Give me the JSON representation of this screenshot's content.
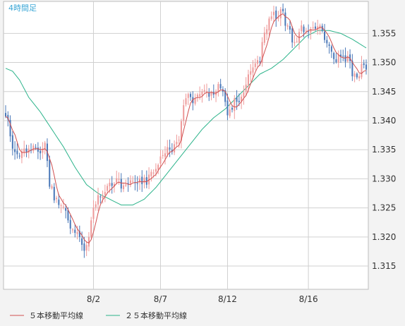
{
  "chart_data": {
    "type": "candlestick",
    "title": "4時間足",
    "ylim": [
      1.311,
      1.3605
    ],
    "y_ticks": [
      "1.315",
      "1.320",
      "1.325",
      "1.330",
      "1.335",
      "1.340",
      "1.345",
      "1.350",
      "1.355"
    ],
    "x_ticks": [
      {
        "label": "8/2",
        "index": 38
      },
      {
        "label": "8/7",
        "index": 67
      },
      {
        "label": "8/12",
        "index": 96
      },
      {
        "label": "8/16",
        "index": 131
      }
    ],
    "grid": true,
    "legend_position": "bottom-left",
    "colors": {
      "up": "#ee9a9a",
      "down": "#4a78b8",
      "ma5": "#d05050",
      "ma25": "#2bb38a",
      "grid": "#d0d0d0",
      "plot_bg": "#ffffff",
      "frame_bg": "#f3f3f3",
      "title": "#3aa6d6"
    },
    "legend": [
      {
        "label": "５本移動平均線",
        "color": "#d05050"
      },
      {
        "label": "２５本移動平均線",
        "color": "#2bb38a"
      }
    ],
    "keypoints": [
      [
        0,
        1.341
      ],
      [
        3,
        1.336
      ],
      [
        6,
        1.3345
      ],
      [
        9,
        1.335
      ],
      [
        12,
        1.336
      ],
      [
        15,
        1.335
      ],
      [
        17,
        1.336
      ],
      [
        19,
        1.329
      ],
      [
        21,
        1.327
      ],
      [
        23,
        1.325
      ],
      [
        25,
        1.3245
      ],
      [
        27,
        1.323
      ],
      [
        29,
        1.3215
      ],
      [
        31,
        1.321
      ],
      [
        34,
        1.3175
      ],
      [
        36,
        1.3195
      ],
      [
        38,
        1.325
      ],
      [
        40,
        1.327
      ],
      [
        42,
        1.328
      ],
      [
        45,
        1.3285
      ],
      [
        48,
        1.3295
      ],
      [
        51,
        1.329
      ],
      [
        54,
        1.329
      ],
      [
        57,
        1.3295
      ],
      [
        60,
        1.3295
      ],
      [
        63,
        1.3305
      ],
      [
        66,
        1.332
      ],
      [
        69,
        1.335
      ],
      [
        72,
        1.3355
      ],
      [
        75,
        1.337
      ],
      [
        77,
        1.342
      ],
      [
        79,
        1.3445
      ],
      [
        81,
        1.343
      ],
      [
        84,
        1.3445
      ],
      [
        87,
        1.345
      ],
      [
        90,
        1.3445
      ],
      [
        92,
        1.346
      ],
      [
        94,
        1.345
      ],
      [
        96,
        1.3415
      ],
      [
        98,
        1.342
      ],
      [
        100,
        1.344
      ],
      [
        102,
        1.3435
      ],
      [
        104,
        1.346
      ],
      [
        106,
        1.349
      ],
      [
        108,
        1.3505
      ],
      [
        110,
        1.3505
      ],
      [
        112,
        1.3555
      ],
      [
        114,
        1.3575
      ],
      [
        116,
        1.358
      ],
      [
        118,
        1.3585
      ],
      [
        120,
        1.358
      ],
      [
        122,
        1.356
      ],
      [
        124,
        1.354
      ],
      [
        126,
        1.3545
      ],
      [
        128,
        1.356
      ],
      [
        130,
        1.3555
      ],
      [
        132,
        1.356
      ],
      [
        134,
        1.3555
      ],
      [
        136,
        1.3555
      ],
      [
        138,
        1.354
      ],
      [
        140,
        1.3525
      ],
      [
        142,
        1.35
      ],
      [
        144,
        1.3505
      ],
      [
        146,
        1.3505
      ],
      [
        148,
        1.351
      ],
      [
        150,
        1.3485
      ],
      [
        152,
        1.348
      ],
      [
        154,
        1.349
      ],
      [
        156,
        1.3495
      ]
    ],
    "ma25_curve": [
      [
        0,
        1.349
      ],
      [
        3,
        1.3485
      ],
      [
        6,
        1.347
      ],
      [
        10,
        1.344
      ],
      [
        15,
        1.3415
      ],
      [
        20,
        1.3385
      ],
      [
        25,
        1.3355
      ],
      [
        30,
        1.332
      ],
      [
        35,
        1.329
      ],
      [
        40,
        1.3275
      ],
      [
        45,
        1.3265
      ],
      [
        50,
        1.3255
      ],
      [
        55,
        1.3255
      ],
      [
        60,
        1.3265
      ],
      [
        65,
        1.3285
      ],
      [
        70,
        1.331
      ],
      [
        75,
        1.3335
      ],
      [
        80,
        1.336
      ],
      [
        85,
        1.3385
      ],
      [
        90,
        1.3405
      ],
      [
        95,
        1.342
      ],
      [
        100,
        1.344
      ],
      [
        105,
        1.346
      ],
      [
        110,
        1.348
      ],
      [
        115,
        1.349
      ],
      [
        120,
        1.3505
      ],
      [
        125,
        1.3525
      ],
      [
        130,
        1.3545
      ],
      [
        135,
        1.3555
      ],
      [
        140,
        1.3555
      ],
      [
        145,
        1.355
      ],
      [
        150,
        1.354
      ],
      [
        156,
        1.3525
      ]
    ],
    "candle_count": 157
  }
}
